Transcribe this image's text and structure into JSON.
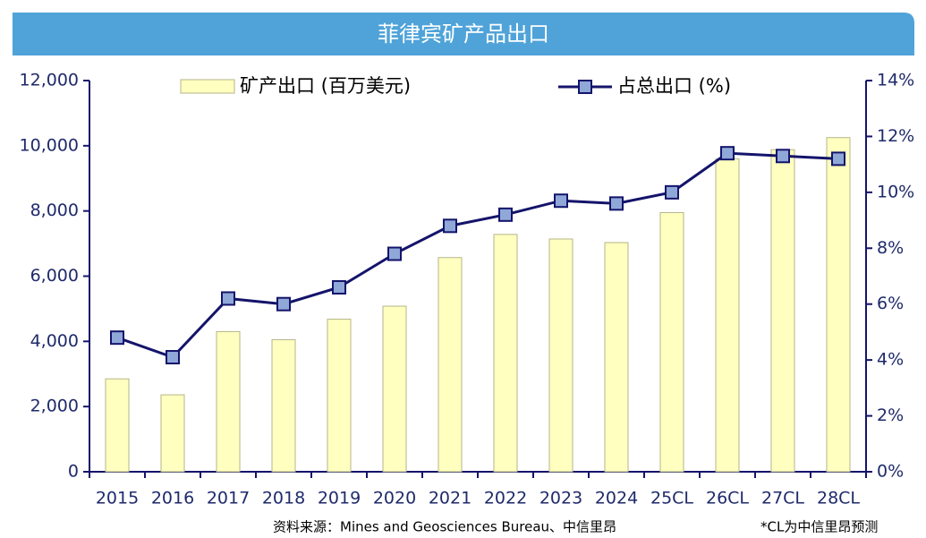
{
  "chart_data": {
    "type": "bar_line",
    "title": "菲律宾矿产品出口",
    "categories": [
      "2015",
      "2016",
      "2017",
      "2018",
      "2019",
      "2020",
      "2021",
      "2022",
      "2023",
      "2024",
      "25CL",
      "26CL",
      "27CL",
      "28CL"
    ],
    "series": [
      {
        "name": "矿产出口 (百万美元)",
        "type": "bar",
        "color": "#ffffc0",
        "values": [
          2850,
          2360,
          4300,
          4050,
          4680,
          5080,
          6570,
          7280,
          7140,
          7030,
          7950,
          9600,
          9880,
          10250
        ]
      },
      {
        "name": "占总出口 (%)",
        "type": "line",
        "axis": "y2",
        "color": "#14146b",
        "values": [
          4.8,
          4.1,
          6.2,
          6.0,
          6.6,
          7.8,
          8.8,
          9.2,
          9.7,
          9.6,
          10.0,
          11.4,
          11.3,
          11.2
        ]
      }
    ],
    "ylim": [
      0,
      12000
    ],
    "yticks": [
      0,
      {
        "value": 2000,
        "label": "2,000"
      },
      {
        "value": 4000,
        "label": "4,000"
      },
      {
        "value": 6000,
        "label": "6,000"
      },
      {
        "value": 8000,
        "label": "8,000"
      },
      {
        "value": 10000,
        "label": "10,000"
      },
      {
        "value": 12000,
        "label": "12,000"
      }
    ],
    "y2lim": [
      0,
      14
    ],
    "y2ticks": [
      {
        "value": 0,
        "label": "0%"
      },
      {
        "value": 2,
        "label": "2%"
      },
      {
        "value": 4,
        "label": "4%"
      },
      {
        "value": 6,
        "label": "6%"
      },
      {
        "value": 8,
        "label": "8%"
      },
      {
        "value": 10,
        "label": "10%"
      },
      {
        "value": 12,
        "label": "12%"
      },
      {
        "value": 14,
        "label": "14%"
      }
    ],
    "legend": "top",
    "annotations": [
      "资料来源：Mines and Geosciences Bureau、中信里昂",
      "*CL为中信里昂预测"
    ]
  }
}
